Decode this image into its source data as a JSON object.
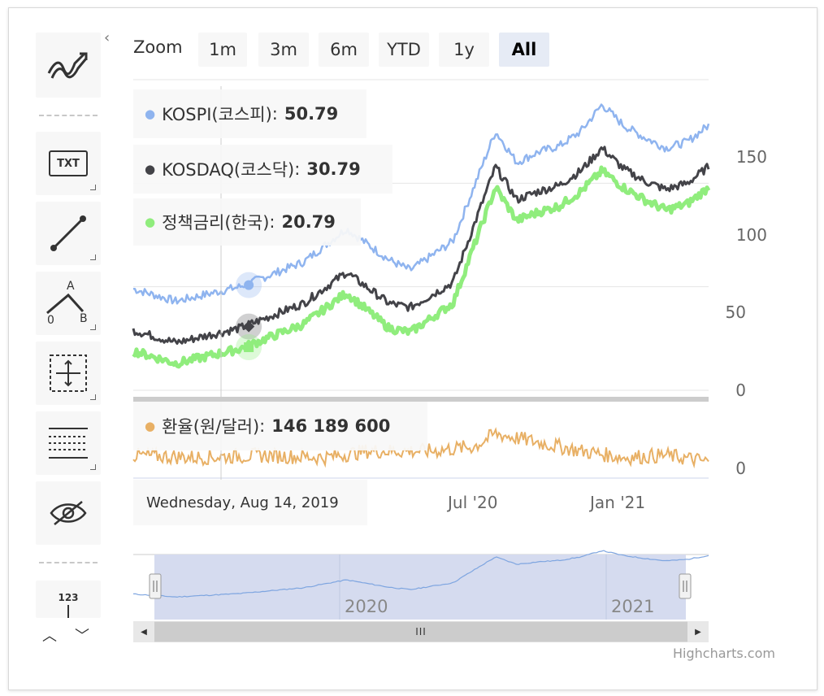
{
  "toolbar": {
    "collapse_arrow": "‹",
    "text_icon_label": "TXT",
    "measure_labels": [
      "A",
      "0",
      "B"
    ],
    "counter_label": "123",
    "up_arrow": "︿",
    "down_arrow": "﹀"
  },
  "zoom": {
    "label": "Zoom",
    "buttons": [
      "1m",
      "3m",
      "6m",
      "YTD",
      "1y",
      "All"
    ],
    "active": "All"
  },
  "tooltips": [
    {
      "name": "KOSPI(코스피)",
      "value": "50.79",
      "color": "#8fb4ef",
      "marker": "●"
    },
    {
      "name": "KOSDAQ(코스닥)",
      "value": "30.79",
      "color": "#434348",
      "marker": "●"
    },
    {
      "name": "정책금리(한국)",
      "value": "20.79",
      "color": "#90ed7d",
      "marker": "●"
    },
    {
      "name": "환율(원/달러)",
      "value": "146 189 600",
      "color": "#e8b065",
      "marker": "●"
    }
  ],
  "date_tooltip": "Wednesday, Aug 14, 2019",
  "y_axis_top": {
    "ticks": [
      "150",
      "100",
      "50",
      "0"
    ]
  },
  "y_axis_bottom": {
    "ticks": [
      "0"
    ]
  },
  "x_axis": {
    "ticks": [
      "Jul '20",
      "Jan '21"
    ]
  },
  "navigator": {
    "labels": [
      "2020",
      "2021"
    ],
    "scrollbar_grip": "III",
    "left_arrow": "◀",
    "right_arrow": "▶"
  },
  "credits": "Highcharts.com",
  "colors": {
    "kospi": "#8fb4ef",
    "kosdaq": "#434348",
    "rate": "#90ed7d",
    "fx": "#e8b065",
    "navigator_fill": "#d5dbef",
    "active_zoom": "#e6ebf5"
  },
  "chart_data": {
    "type": "line",
    "x_range": [
      "2019-03",
      "2021-06"
    ],
    "panes": [
      {
        "ylim": [
          0,
          150
        ],
        "series": [
          {
            "name": "KOSPI(코스피)",
            "x": [
              "2019-03",
              "2019-05",
              "2019-08",
              "2019-11",
              "2020-01",
              "2020-03",
              "2020-04",
              "2020-06",
              "2020-08",
              "2020-09",
              "2020-10",
              "2020-11",
              "2020-12",
              "2021-01",
              "2021-02",
              "2021-03",
              "2021-04",
              "2021-05",
              "2021-06"
            ],
            "values": [
              49,
              43,
              50,
              62,
              78,
              63,
              58,
              72,
              125,
              110,
              115,
              118,
              125,
              138,
              128,
              122,
              117,
              120,
              128
            ]
          },
          {
            "name": "KOSDAQ(코스닥)",
            "x": [
              "2019-03",
              "2019-05",
              "2019-08",
              "2019-11",
              "2020-01",
              "2020-03",
              "2020-04",
              "2020-06",
              "2020-08",
              "2020-09",
              "2020-10",
              "2020-11",
              "2020-12",
              "2021-01",
              "2021-02",
              "2021-03",
              "2021-04",
              "2021-05",
              "2021-06"
            ],
            "values": [
              29,
              23,
              30,
              42,
              57,
              42,
              40,
              52,
              108,
              92,
              96,
              99,
              106,
              117,
              107,
              101,
              97,
              100,
              108
            ]
          },
          {
            "name": "정책금리(한국)",
            "x": [
              "2019-03",
              "2019-05",
              "2019-08",
              "2019-11",
              "2020-01",
              "2020-03",
              "2020-04",
              "2020-06",
              "2020-08",
              "2020-09",
              "2020-10",
              "2020-11",
              "2020-12",
              "2021-01",
              "2021-02",
              "2021-03",
              "2021-04",
              "2021-05",
              "2021-06"
            ],
            "values": [
              19,
              13,
              20,
              32,
              47,
              30,
              28,
              42,
              98,
              82,
              86,
              89,
              96,
              106,
              98,
              92,
              87,
              90,
              98
            ]
          }
        ]
      },
      {
        "ylim": [
          0,
          30
        ],
        "series": [
          {
            "name": "환율(원/달러)",
            "x": [
              "2019-03",
              "2019-06",
              "2019-09",
              "2019-12",
              "2020-02",
              "2020-05",
              "2020-07",
              "2020-08",
              "2020-10",
              "2020-12",
              "2021-02",
              "2021-04",
              "2021-06"
            ],
            "values": [
              6,
              5,
              6,
              5,
              8,
              8,
              10,
              16,
              12,
              8,
              5,
              6,
              3
            ]
          }
        ]
      }
    ],
    "tooltip_x": "2019-08-14"
  }
}
